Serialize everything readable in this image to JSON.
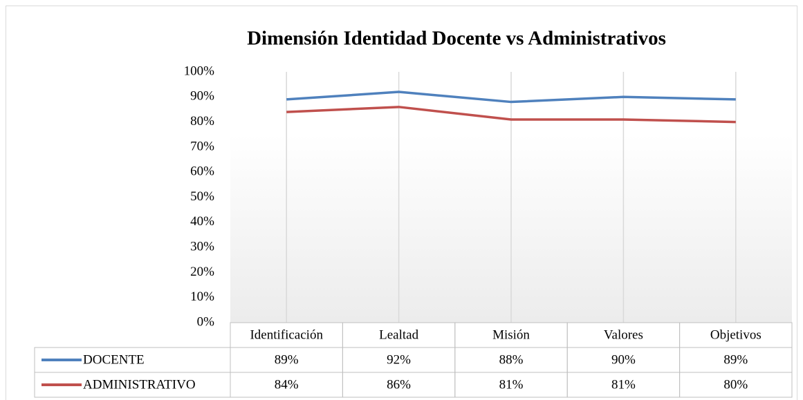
{
  "chart_data": {
    "type": "line",
    "title": "Dimensión Identidad Docente vs Administrativos",
    "categories": [
      "Identificación",
      "Lealtad",
      "Misión",
      "Valores",
      "Objetivos"
    ],
    "series": [
      {
        "name": "DOCENTE",
        "color": "#4f81bd",
        "values": [
          89,
          92,
          88,
          90,
          89
        ],
        "value_labels": [
          "89%",
          "92%",
          "88%",
          "90%",
          "89%"
        ]
      },
      {
        "name": "ADMINISTRATIVO",
        "color": "#c0504d",
        "values": [
          84,
          86,
          81,
          81,
          80
        ],
        "value_labels": [
          "84%",
          "86%",
          "81%",
          "81%",
          "80%"
        ]
      }
    ],
    "ylim": [
      0,
      100
    ],
    "yticks": [
      {
        "value": 0,
        "label": "0%"
      },
      {
        "value": 10,
        "label": "10%"
      },
      {
        "value": 20,
        "label": "20%"
      },
      {
        "value": 30,
        "label": "30%"
      },
      {
        "value": 40,
        "label": "40%"
      },
      {
        "value": 50,
        "label": "50%"
      },
      {
        "value": 60,
        "label": "60%"
      },
      {
        "value": 70,
        "label": "70%"
      },
      {
        "value": 80,
        "label": "80%"
      },
      {
        "value": 90,
        "label": "90%"
      },
      {
        "value": 100,
        "label": "100%"
      }
    ],
    "grid": true
  }
}
